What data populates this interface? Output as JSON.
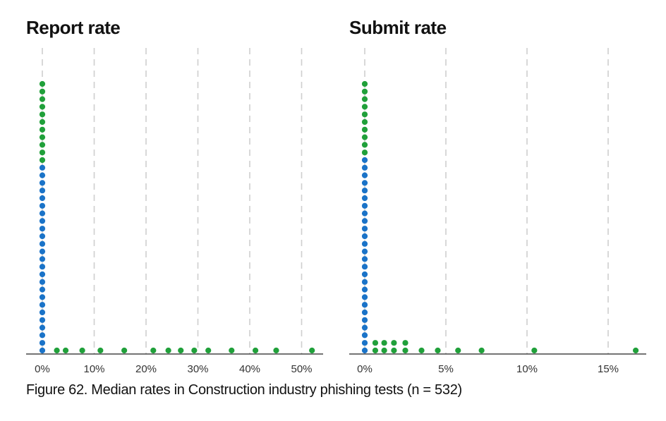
{
  "figure_caption": "Figure 62. Median rates in Construction industry phishing tests (n = 532)",
  "colors": {
    "blue": "#1a73c8",
    "green": "#20a03a",
    "grid": "#cfcfcf",
    "axis": "#222222"
  },
  "chart_data": [
    {
      "type": "scatter",
      "subtype": "dot-plot",
      "title": "Report rate",
      "xlabel": "",
      "ylabel": "",
      "xlim": [
        0,
        55
      ],
      "x_ticks": [
        0,
        10,
        20,
        30,
        40,
        50
      ],
      "x_tick_labels": [
        "0%",
        "10%",
        "20%",
        "30%",
        "40%",
        "50%"
      ],
      "grid": true,
      "series": [
        {
          "color": "#1a73c8",
          "points": [
            {
              "x": 0,
              "count": 25
            }
          ]
        },
        {
          "color": "#20a03a",
          "points": [
            {
              "x": 0,
              "count": 11
            },
            {
              "x": 2.8,
              "count": 1
            },
            {
              "x": 4.5,
              "count": 1
            },
            {
              "x": 7.7,
              "count": 1
            },
            {
              "x": 11.2,
              "count": 1
            },
            {
              "x": 15.8,
              "count": 1
            },
            {
              "x": 21.4,
              "count": 1
            },
            {
              "x": 24.3,
              "count": 1
            },
            {
              "x": 26.7,
              "count": 1
            },
            {
              "x": 29.3,
              "count": 1
            },
            {
              "x": 32.0,
              "count": 1
            },
            {
              "x": 36.5,
              "count": 1
            },
            {
              "x": 41.1,
              "count": 1
            },
            {
              "x": 45.1,
              "count": 1
            },
            {
              "x": 52.0,
              "count": 1
            }
          ]
        }
      ]
    },
    {
      "type": "scatter",
      "subtype": "dot-plot",
      "title": "Submit rate",
      "xlabel": "",
      "ylabel": "",
      "xlim": [
        0,
        17.5
      ],
      "x_ticks": [
        0,
        5,
        10,
        15
      ],
      "x_tick_labels": [
        "0%",
        "5%",
        "10%",
        "15%"
      ],
      "grid": true,
      "series": [
        {
          "color": "#1a73c8",
          "points": [
            {
              "x": 0,
              "count": 26
            }
          ]
        },
        {
          "color": "#20a03a",
          "points": [
            {
              "x": 0,
              "count": 10
            },
            {
              "x": 0.65,
              "count": 2
            },
            {
              "x": 1.2,
              "count": 2
            },
            {
              "x": 1.8,
              "count": 2
            },
            {
              "x": 2.5,
              "count": 2
            },
            {
              "x": 3.5,
              "count": 1
            },
            {
              "x": 4.5,
              "count": 1
            },
            {
              "x": 5.75,
              "count": 1
            },
            {
              "x": 7.2,
              "count": 1
            },
            {
              "x": 10.45,
              "count": 1
            },
            {
              "x": 16.7,
              "count": 1
            }
          ]
        }
      ]
    }
  ]
}
